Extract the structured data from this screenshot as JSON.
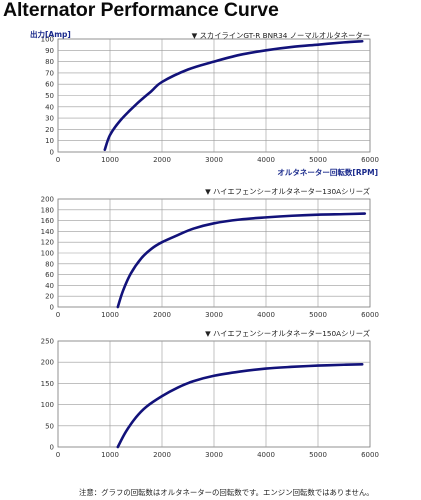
{
  "page_title": "Alternator Performance Curve",
  "footnote": "注意：グラフの回転数はオルタネーターの回転数です。エンジン回転数ではありません。",
  "chart_data": [
    {
      "type": "line",
      "caption": "▼ スカイラインGT-R BNR34 ノーマルオルタネーター",
      "ylabel": "出力[Amp]",
      "xlabel": "オルタネーター回転数[RPM]",
      "xlim": [
        0,
        6000
      ],
      "ylim": [
        0,
        100
      ],
      "xticks": [
        0,
        1000,
        2000,
        3000,
        4000,
        5000,
        6000
      ],
      "yticks": [
        0,
        10,
        20,
        30,
        40,
        50,
        60,
        70,
        80,
        90,
        100
      ],
      "grid": true,
      "series": [
        {
          "color": "#12127a",
          "x": [
            900,
            1000,
            1200,
            1500,
            1800,
            2000,
            2500,
            3000,
            3500,
            4000,
            4500,
            5000,
            5500,
            5850
          ],
          "y": [
            2,
            15,
            28,
            42,
            54,
            62,
            73,
            80,
            86,
            90,
            93,
            95,
            97,
            98
          ]
        }
      ]
    },
    {
      "type": "line",
      "caption": "▼ ハイエフェンシーオルタネーター130Aシリーズ",
      "xlim": [
        0,
        6000
      ],
      "ylim": [
        0,
        200
      ],
      "xticks": [
        0,
        1000,
        2000,
        3000,
        4000,
        5000,
        6000
      ],
      "yticks": [
        0,
        20,
        40,
        60,
        80,
        100,
        120,
        140,
        160,
        180,
        200
      ],
      "grid": true,
      "series": [
        {
          "color": "#12127a",
          "x": [
            1150,
            1250,
            1400,
            1600,
            1800,
            2000,
            2300,
            2600,
            3000,
            3500,
            4000,
            4500,
            5000,
            5500,
            5900
          ],
          "y": [
            0,
            30,
            62,
            90,
            108,
            120,
            133,
            145,
            155,
            162,
            166,
            169,
            171,
            172,
            173
          ]
        }
      ]
    },
    {
      "type": "line",
      "caption": "▼ ハイエフェンシーオルタネーター150Aシリーズ",
      "xlim": [
        0,
        6000
      ],
      "ylim": [
        0,
        250
      ],
      "xticks": [
        0,
        1000,
        2000,
        3000,
        4000,
        5000,
        6000
      ],
      "yticks": [
        0,
        50,
        100,
        150,
        200,
        250
      ],
      "grid": true,
      "series": [
        {
          "color": "#12127a",
          "x": [
            1150,
            1300,
            1500,
            1700,
            2000,
            2300,
            2600,
            3000,
            3500,
            4000,
            4500,
            5000,
            5500,
            5850
          ],
          "y": [
            0,
            35,
            70,
            95,
            120,
            140,
            155,
            168,
            178,
            185,
            189,
            192,
            194,
            195
          ]
        }
      ]
    }
  ]
}
